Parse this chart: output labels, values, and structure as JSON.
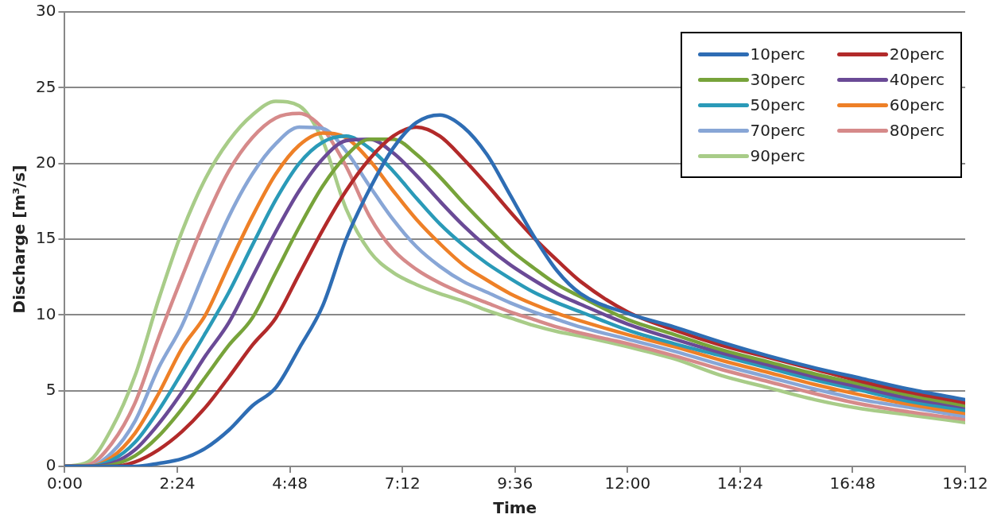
{
  "chart_data": {
    "type": "line",
    "xlabel": "Time",
    "ylabel": "Discharge [m³/s]",
    "x": [
      0,
      0.5,
      1,
      1.5,
      2,
      2.5,
      3,
      3.5,
      4,
      4.5,
      5,
      5.5,
      6,
      6.5,
      7,
      7.5,
      8,
      8.5,
      9,
      9.5,
      10,
      10.5,
      11,
      12,
      13,
      14,
      15,
      16,
      17,
      18,
      19.2
    ],
    "xlim": [
      0,
      19.2
    ],
    "xticks": [
      {
        "value": 0,
        "label": "0:00"
      },
      {
        "value": 2.4,
        "label": "2:24"
      },
      {
        "value": 4.8,
        "label": "4:48"
      },
      {
        "value": 7.2,
        "label": "7:12"
      },
      {
        "value": 9.6,
        "label": "9:36"
      },
      {
        "value": 12,
        "label": "12:00"
      },
      {
        "value": 14.4,
        "label": "14:24"
      },
      {
        "value": 16.8,
        "label": "16:48"
      },
      {
        "value": 19.2,
        "label": "19:12"
      }
    ],
    "ylim": [
      0,
      30
    ],
    "yticks": [
      0,
      5,
      10,
      15,
      20,
      25,
      30
    ],
    "grid": "y",
    "legend": "top right",
    "series": [
      {
        "name": "10perc",
        "color": "#2e6db4",
        "values": [
          0,
          0,
          0,
          0,
          0.2,
          0.5,
          1.2,
          2.4,
          4,
          5.2,
          7.8,
          10.6,
          15,
          18.3,
          21,
          22.7,
          23.2,
          22.4,
          20.6,
          17.9,
          15.2,
          12.9,
          11.4,
          10.1,
          9.2,
          8.2,
          7.3,
          6.5,
          5.8,
          5.1,
          4.4
        ]
      },
      {
        "name": "20perc",
        "color": "#b22a2a",
        "values": [
          0,
          0,
          0,
          0.3,
          1.1,
          2.3,
          3.9,
          5.9,
          8,
          9.8,
          12.7,
          15.6,
          18.2,
          20.3,
          21.8,
          22.4,
          21.8,
          20.3,
          18.6,
          16.8,
          15.1,
          13.6,
          12.2,
          10.2,
          9,
          8,
          7.2,
          6.4,
          5.6,
          4.9,
          4.2
        ]
      },
      {
        "name": "30perc",
        "color": "#77a33a",
        "values": [
          0,
          0,
          0.1,
          0.7,
          2,
          3.8,
          5.9,
          8,
          9.8,
          12.8,
          15.8,
          18.5,
          20.5,
          21.6,
          21.6,
          20.6,
          19.1,
          17.4,
          15.8,
          14.3,
          13.1,
          12,
          11.2,
          9.7,
          8.7,
          7.7,
          6.9,
          6.1,
          5.4,
          4.7,
          4
        ]
      },
      {
        "name": "40perc",
        "color": "#6a4a96",
        "values": [
          0,
          0,
          0.2,
          1.1,
          2.8,
          4.9,
          7.3,
          9.5,
          12.5,
          15.5,
          18.2,
          20.3,
          21.5,
          21.6,
          20.7,
          19.2,
          17.5,
          15.9,
          14.5,
          13.3,
          12.3,
          11.4,
          10.7,
          9.4,
          8.4,
          7.5,
          6.7,
          5.9,
          5.2,
          4.5,
          3.9
        ]
      },
      {
        "name": "50perc",
        "color": "#2a9ab8",
        "values": [
          0,
          0,
          0.4,
          1.6,
          3.7,
          6.2,
          8.8,
          11.5,
          14.6,
          17.6,
          20,
          21.4,
          21.8,
          21,
          19.5,
          17.7,
          16,
          14.6,
          13.4,
          12.4,
          11.5,
          10.8,
          10.2,
          9,
          8.1,
          7.3,
          6.5,
          5.7,
          5,
          4.3,
          3.7
        ]
      },
      {
        "name": "60perc",
        "color": "#ee8027",
        "values": [
          0,
          0,
          0.6,
          2.2,
          4.8,
          7.8,
          10,
          13.3,
          16.5,
          19.3,
          21.2,
          22,
          21.7,
          20.2,
          18.2,
          16.3,
          14.7,
          13.3,
          12.3,
          11.4,
          10.7,
          10.1,
          9.6,
          8.7,
          7.9,
          7,
          6.2,
          5.4,
          4.7,
          4.1,
          3.5
        ]
      },
      {
        "name": "70perc",
        "color": "#88a6d6",
        "values": [
          0,
          0,
          0.9,
          3,
          6.5,
          9.3,
          13,
          16.5,
          19.3,
          21.3,
          22.4,
          22.3,
          20.8,
          18.5,
          16.3,
          14.5,
          13.2,
          12.2,
          11.5,
          10.8,
          10.2,
          9.7,
          9.2,
          8.4,
          7.6,
          6.7,
          5.9,
          5.1,
          4.4,
          3.9,
          3.3
        ]
      },
      {
        "name": "80perc",
        "color": "#d68a8a",
        "values": [
          0,
          0.1,
          1.5,
          4.2,
          8.5,
          12.5,
          16.3,
          19.5,
          21.7,
          23,
          23.3,
          22.3,
          19.8,
          16.5,
          14.3,
          13,
          12.1,
          11.4,
          10.8,
          10.2,
          9.7,
          9.2,
          8.8,
          8.1,
          7.3,
          6.4,
          5.6,
          4.8,
          4.1,
          3.6,
          3.1
        ]
      },
      {
        "name": "90perc",
        "color": "#a8cc88",
        "values": [
          0,
          0.3,
          2.5,
          6,
          11,
          15.5,
          19,
          21.5,
          23.2,
          24.1,
          23.8,
          21.5,
          17,
          14.2,
          12.8,
          12,
          11.4,
          10.9,
          10.3,
          9.8,
          9.3,
          8.9,
          8.6,
          7.9,
          7.1,
          6,
          5.2,
          4.4,
          3.8,
          3.4,
          2.9
        ]
      }
    ]
  }
}
